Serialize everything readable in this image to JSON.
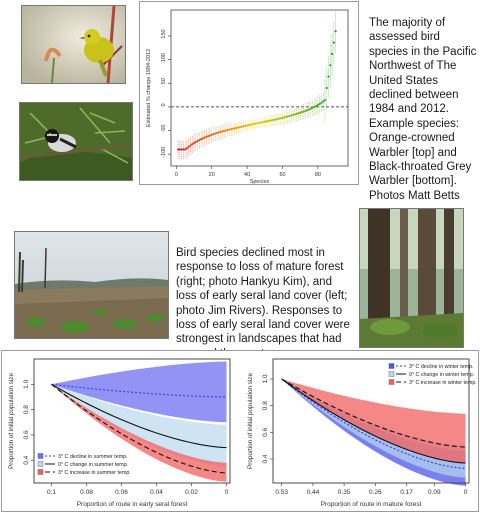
{
  "top_text": "The majority of assessed bird species in the Pacific Northwest of The United States declined between 1984 and 2012. Example species: Orange-crowned Warbler [top] and Black-throated Grey Warbler [bottom]. Photos Matt Betts",
  "middle_text": "Bird species declined most in response to loss of mature forest (right; photo Hankyu Kim), and loss of early seral land cover (left; photo Jim Rivers). Responses to loss of early seral land cover were strongest in landscapes that had warmed the most.",
  "photos": {
    "warbler_top": "orange-crowned-warbler-photo",
    "warbler_bottom": "black-throated-grey-warbler-photo",
    "clearcut": "early-seral-clearcut-photo",
    "forest": "mature-forest-photo"
  },
  "chart_data": [
    {
      "type": "scatter",
      "xlabel": "Species",
      "ylabel": "Estimated % change 1984-2012",
      "xticks": [
        0,
        20,
        40,
        60,
        80
      ],
      "yticks": [
        -100,
        -50,
        0,
        50,
        100,
        150
      ],
      "xlim": [
        -3,
        97
      ],
      "ylim": [
        -125,
        205
      ],
      "reference_line": 0,
      "grid": false,
      "colors": [
        "#e0201f",
        "#e8cf10",
        "#1e9d2c"
      ],
      "n_species": 90,
      "start": -90,
      "end": 170
    },
    {
      "type": "line",
      "xlabel": "Proportion of route in early seral forest",
      "ylabel": "Proportion of initial population size",
      "x_reversed": true,
      "xlim": [
        0.11,
        -0.002
      ],
      "ylim": [
        0.22,
        1.2
      ],
      "xticks": [
        0.1,
        0.08,
        0.06,
        0.04,
        0.02,
        0
      ],
      "xtick_labels": [
        "0.1",
        "0.08",
        "0.06",
        "0.04",
        "0.02",
        "0"
      ],
      "yticks": [
        0.4,
        0.6,
        0.8,
        1.0
      ],
      "ytick_labels": [
        "0.4",
        "0.6",
        "0.8",
        "1.0"
      ],
      "x0": 0.1,
      "x1": 0,
      "legend_position": "bottom-left",
      "series": [
        {
          "name": "3° C decline in summer temp.",
          "color": "#3a3ae8",
          "band": "#6f6ff3",
          "dash": "2,2",
          "mean_end": 0.9,
          "low_end": 0.7,
          "high_end": 1.18
        },
        {
          "name": "0° C change in summer temp.",
          "color": "#111111",
          "band": "#b9d8ee",
          "dash": "",
          "mean_end": 0.5,
          "low_end": 0.35,
          "high_end": 0.68
        },
        {
          "name": "3° C increase in summer temp.",
          "color": "#111111",
          "band": "#f15f5f",
          "dash": "5,3",
          "mean_end": 0.3,
          "low_end": 0.23,
          "high_end": 0.38
        }
      ]
    },
    {
      "type": "line",
      "xlabel": "Proportion of route in mature forest",
      "ylabel": "Proportion of initial population size",
      "x_reversed": true,
      "xlim": [
        0.555,
        -0.01
      ],
      "ylim": [
        0.22,
        1.15
      ],
      "xticks": [
        0.53,
        0.44,
        0.35,
        0.26,
        0.17,
        0.09,
        0
      ],
      "xtick_labels": [
        "0.53",
        "0.44",
        "0.35",
        "0.26",
        "0.17",
        "0.09",
        "0"
      ],
      "yticks": [
        0.4,
        0.6,
        0.8,
        1.0
      ],
      "ytick_labels": [
        "0.4",
        "0.6",
        "0.8",
        "1.0"
      ],
      "x0": 0.53,
      "x1": 0,
      "legend_position": "top-right",
      "series": [
        {
          "name": "3° C decline in winter temp.",
          "color": "#3a3ae8",
          "band": "#4d55e6",
          "dash": "2,2",
          "mean_end": 0.33,
          "low_end": 0.2,
          "high_end": 0.46
        },
        {
          "name": "0° C change in winter temp.",
          "color": "#111111",
          "band": "#b9d8ee",
          "dash": "",
          "mean_end": 0.37,
          "low_end": 0.26,
          "high_end": 0.5
        },
        {
          "name": "3° C increase in winter temp.",
          "color": "#111111",
          "band": "#f15f5f",
          "dash": "5,3",
          "mean_end": 0.49,
          "low_end": 0.37,
          "high_end": 0.74
        }
      ]
    }
  ]
}
